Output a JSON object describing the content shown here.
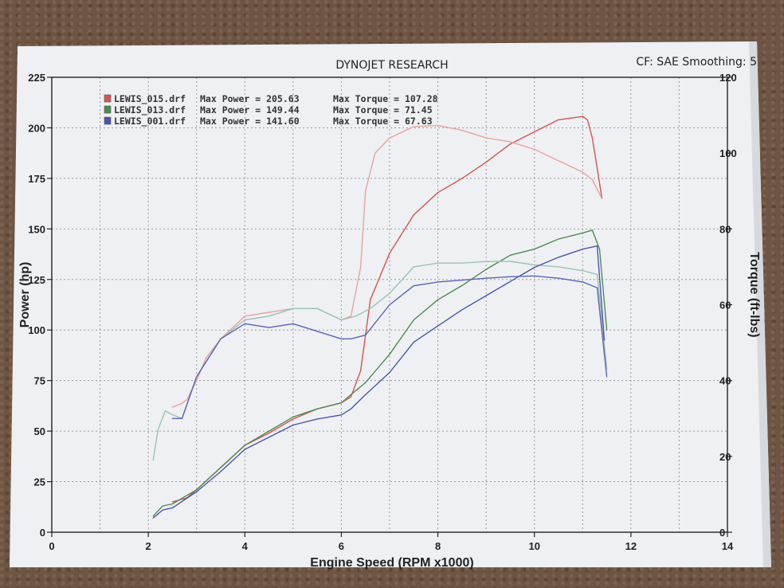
{
  "chart_data": {
    "type": "line",
    "title": "DYNOJET RESEARCH",
    "header_right": "CF: SAE  Smoothing: 5",
    "xlabel": "Engine Speed (RPM x1000)",
    "ylabel": "Power (hp)",
    "y2label": "Torque (ft-lbs)",
    "xlim": [
      0,
      14
    ],
    "ylim": [
      0,
      225
    ],
    "y2lim": [
      0,
      120
    ],
    "xticks": [
      "0",
      "2",
      "4",
      "6",
      "8",
      "10",
      "12",
      "14"
    ],
    "yticks": [
      "0",
      "25",
      "50",
      "75",
      "100",
      "125",
      "150",
      "175",
      "200",
      "225"
    ],
    "y2ticks": [
      "0",
      "20",
      "40",
      "60",
      "80",
      "100",
      "120"
    ],
    "grid": true,
    "legend_position": "top-left",
    "legend": [
      {
        "file": "LEWIS_015.drf",
        "power_text": "Max Power = 205.63",
        "torque_text": "Max Torque = 107.28",
        "color": "#d9534f"
      },
      {
        "file": "LEWIS_013.drf",
        "power_text": "Max Power = 149.44",
        "torque_text": "Max Torque = 71.45",
        "color": "#4f8a55"
      },
      {
        "file": "LEWIS_001.drf",
        "power_text": "Max Power = 141.60",
        "torque_text": "Max Torque = 67.63",
        "color": "#4a55b0"
      }
    ],
    "series": [
      {
        "name": "LEWIS_015.drf",
        "quantity": "power",
        "axis": "left",
        "color": "#d9534f",
        "x": [
          2.5,
          2.8,
          3.0,
          3.5,
          4.0,
          4.5,
          5.0,
          5.5,
          6.0,
          6.2,
          6.4,
          6.6,
          7.0,
          7.5,
          8.0,
          8.5,
          9.0,
          9.5,
          10.0,
          10.5,
          11.0,
          11.1,
          11.2,
          11.3,
          11.4
        ],
        "y": [
          15,
          17,
          21,
          32,
          43,
          49,
          56,
          61,
          64,
          67,
          80,
          115,
          138,
          157,
          168,
          175,
          183,
          192,
          198,
          204,
          205.6,
          204,
          195,
          180,
          165
        ]
      },
      {
        "name": "LEWIS_015.drf",
        "quantity": "torque",
        "axis": "right",
        "color": "#e8a3a0",
        "x": [
          2.5,
          2.7,
          2.8,
          3.0,
          3.2,
          3.5,
          4.0,
          4.5,
          5.0,
          5.5,
          6.0,
          6.2,
          6.4,
          6.5,
          6.7,
          7.0,
          7.5,
          8.0,
          8.5,
          9.0,
          9.5,
          10.0,
          10.5,
          11.0,
          11.2,
          11.4
        ],
        "y": [
          33,
          34,
          35,
          40,
          46,
          51,
          57,
          58,
          59,
          59,
          56,
          57,
          70,
          90,
          100,
          104,
          107,
          107.3,
          106,
          104,
          103,
          101,
          98,
          95,
          93,
          88
        ]
      },
      {
        "name": "LEWIS_013.drf",
        "quantity": "power",
        "axis": "left",
        "color": "#4f8a55",
        "x": [
          2.1,
          2.3,
          2.5,
          3.0,
          3.5,
          4.0,
          4.5,
          5.0,
          5.5,
          6.0,
          6.2,
          6.5,
          7.0,
          7.5,
          8.0,
          8.5,
          9.0,
          9.5,
          10.0,
          10.5,
          11.0,
          11.2,
          11.35,
          11.5
        ],
        "y": [
          8,
          13,
          14,
          21,
          32,
          43,
          50,
          57,
          61,
          64,
          68,
          74,
          88,
          105,
          115,
          122,
          130,
          137,
          140,
          145,
          148,
          149.4,
          140,
          100
        ]
      },
      {
        "name": "LEWIS_013.drf",
        "quantity": "torque",
        "axis": "right",
        "color": "#9ec1b4",
        "x": [
          2.1,
          2.2,
          2.35,
          2.5,
          2.7,
          3.0,
          3.5,
          4.0,
          4.5,
          5.0,
          5.5,
          6.0,
          6.3,
          6.6,
          7.0,
          7.5,
          8.0,
          8.5,
          9.0,
          9.5,
          10.0,
          10.5,
          11.0,
          11.3,
          11.5
        ],
        "y": [
          19,
          27,
          32,
          31,
          30,
          41,
          51,
          56,
          57,
          59,
          59,
          56,
          57,
          59,
          63,
          70,
          71,
          71,
          71.4,
          71.45,
          70.5,
          70,
          69,
          68,
          43
        ]
      },
      {
        "name": "LEWIS_001.drf",
        "quantity": "power",
        "axis": "left",
        "color": "#4a55b0",
        "x": [
          2.1,
          2.3,
          2.5,
          3.0,
          3.5,
          4.0,
          4.5,
          5.0,
          5.5,
          6.0,
          6.2,
          6.5,
          7.0,
          7.5,
          8.0,
          8.5,
          9.0,
          9.5,
          10.0,
          10.5,
          11.0,
          11.3,
          11.45
        ],
        "y": [
          7,
          11,
          12,
          20,
          30,
          41,
          47,
          53,
          56,
          58,
          61,
          68,
          79,
          94,
          102,
          110,
          117,
          124,
          131,
          136,
          140,
          141.6,
          95
        ]
      },
      {
        "name": "LEWIS_001.drf",
        "quantity": "torque",
        "axis": "right",
        "color": "#5a64b8",
        "x": [
          2.5,
          2.7,
          3.0,
          3.5,
          4.0,
          4.5,
          5.0,
          5.5,
          6.0,
          6.2,
          6.5,
          7.0,
          7.5,
          8.0,
          8.5,
          9.0,
          9.5,
          10.0,
          10.5,
          11.0,
          11.3,
          11.5
        ],
        "y": [
          30,
          30,
          41,
          51,
          55,
          54,
          55,
          53,
          51,
          51,
          52,
          60,
          65,
          66,
          66.5,
          67,
          67.4,
          67.6,
          67,
          66,
          64.5,
          41
        ]
      }
    ]
  }
}
